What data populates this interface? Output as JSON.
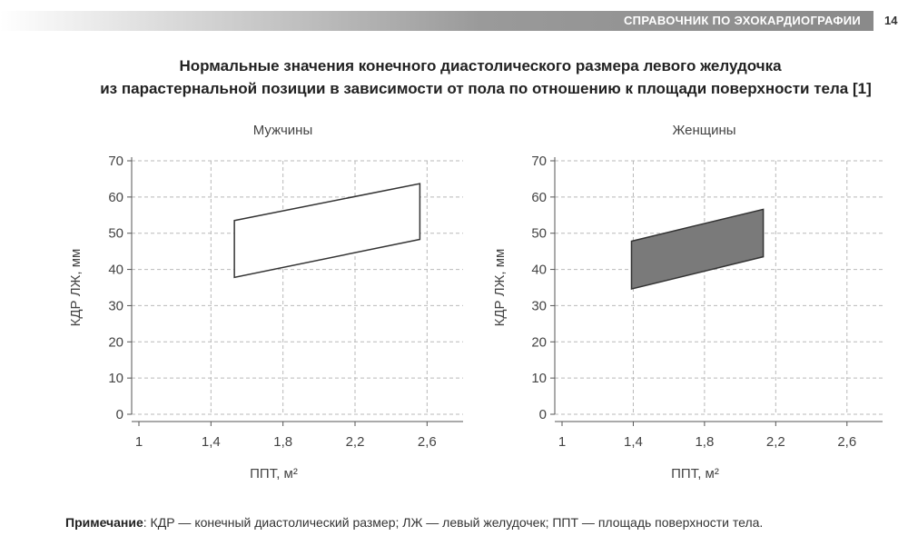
{
  "header": {
    "running_title": "СПРАВОЧНИК ПО ЭХОКАРДИОГРАФИИ",
    "page_number": "14"
  },
  "title_line1": "Нормальные значения конечного диастолического размера левого желудочка",
  "title_line2": "из парастернальной позиции в зависимости от пола по отношению к площади поверхности тела [1]",
  "note": {
    "label": "Примечание",
    "text": ": КДР — конечный диастолический размер; ЛЖ — левый желудочек; ППТ — площадь поверхности тела."
  },
  "chart_data": [
    {
      "type": "area",
      "title": "Мужчины",
      "xlabel": "ППТ, м²",
      "ylabel": "КДР ЛЖ, мм",
      "xlim": [
        1,
        2.8
      ],
      "ylim": [
        0,
        70
      ],
      "x_ticks": [
        1,
        1.4,
        1.8,
        2.2,
        2.6
      ],
      "x_tick_labels": [
        "1",
        "1,4",
        "1,8",
        "2,2",
        "2,6"
      ],
      "y_ticks": [
        0,
        10,
        20,
        30,
        40,
        50,
        60,
        70
      ],
      "y_tick_labels": [
        "0",
        "10",
        "20",
        "30",
        "40",
        "50",
        "60",
        "70"
      ],
      "grid": true,
      "fill": "#ffffff",
      "polygon": [
        [
          1.53,
          53.5
        ],
        [
          2.56,
          63.7
        ],
        [
          2.56,
          48.3
        ],
        [
          1.53,
          37.8
        ]
      ]
    },
    {
      "type": "area",
      "title": "Женщины",
      "xlabel": "ППТ, м²",
      "ylabel": "КДР ЛЖ, мм",
      "xlim": [
        1,
        2.8
      ],
      "ylim": [
        0,
        70
      ],
      "x_ticks": [
        1,
        1.4,
        1.8,
        2.2,
        2.6
      ],
      "x_tick_labels": [
        "1",
        "1,4",
        "1,8",
        "2,2",
        "2,6"
      ],
      "y_ticks": [
        0,
        10,
        20,
        30,
        40,
        50,
        60,
        70
      ],
      "y_tick_labels": [
        "0",
        "10",
        "20",
        "30",
        "40",
        "50",
        "60",
        "70"
      ],
      "grid": true,
      "fill": "#7a7a7a",
      "polygon": [
        [
          1.39,
          47.8
        ],
        [
          2.13,
          56.6
        ],
        [
          2.13,
          43.5
        ],
        [
          1.39,
          34.6
        ]
      ]
    }
  ]
}
